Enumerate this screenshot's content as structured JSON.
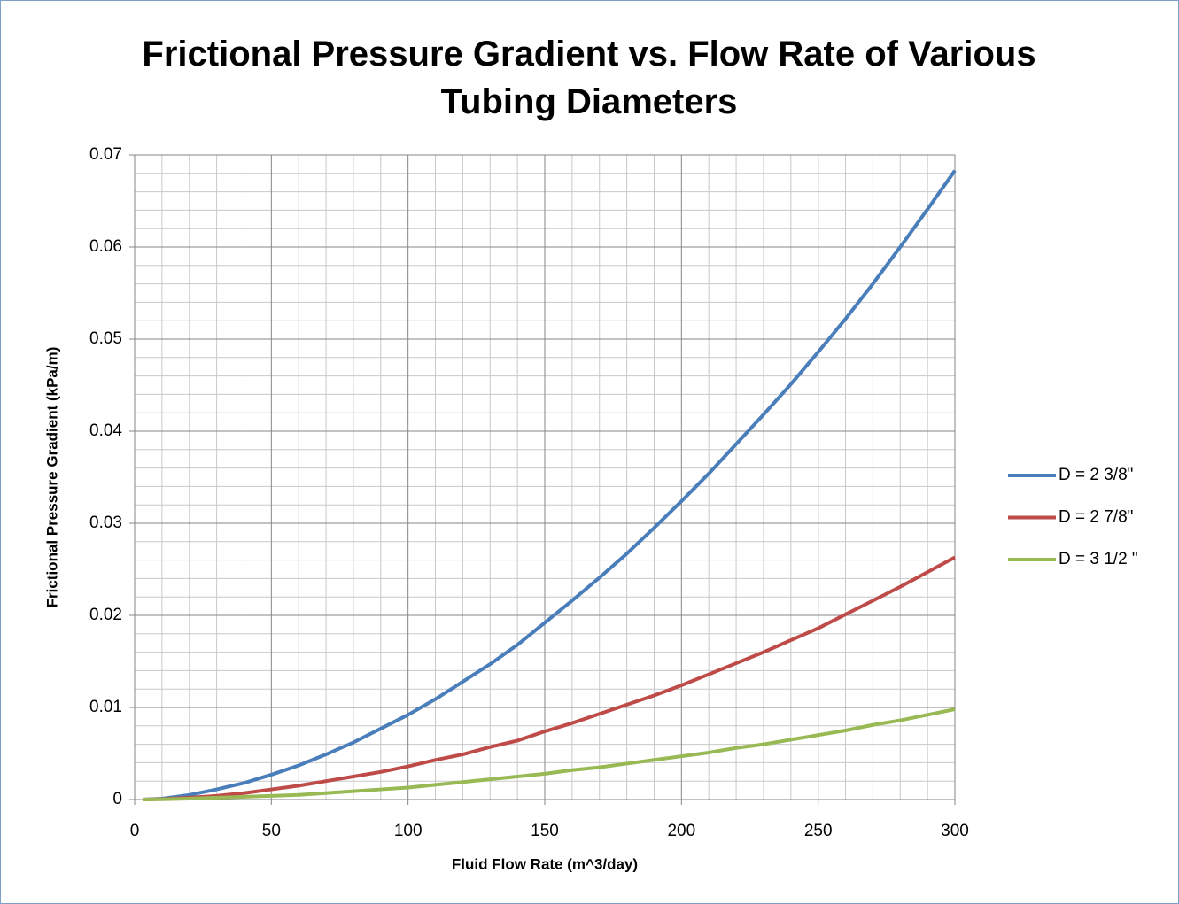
{
  "chart_data": {
    "type": "line",
    "title": "Frictional Pressure Gradient vs. Flow Rate of Various Tubing Diameters",
    "x_label": "Fluid Flow Rate (m^3/day)",
    "y_label": "Frictional Pressure Gradient (kPa/m)",
    "x": [
      3,
      10,
      20,
      30,
      40,
      50,
      60,
      70,
      80,
      90,
      100,
      110,
      120,
      130,
      140,
      150,
      160,
      170,
      180,
      190,
      200,
      210,
      220,
      230,
      240,
      250,
      260,
      270,
      280,
      290,
      300
    ],
    "series": [
      {
        "name": "D = 2 3/8\"",
        "color": "#4a7ebb",
        "values": [
          0,
          0.0001,
          0.0005,
          0.0011,
          0.0018,
          0.0027,
          0.0037,
          0.0049,
          0.0062,
          0.0077,
          0.0092,
          0.0109,
          0.0128,
          0.0147,
          0.0168,
          0.0192,
          0.0216,
          0.0241,
          0.0267,
          0.0295,
          0.0324,
          0.0354,
          0.0386,
          0.0418,
          0.0451,
          0.0486,
          0.0522,
          0.056,
          0.06,
          0.0641,
          0.0683
        ]
      },
      {
        "name": "D = 2 7/8\"",
        "color": "#be4b48",
        "values": [
          0,
          5e-05,
          0.0002,
          0.0004,
          0.0007,
          0.0011,
          0.0015,
          0.002,
          0.0025,
          0.003,
          0.0036,
          0.0043,
          0.0049,
          0.0057,
          0.0064,
          0.0074,
          0.0083,
          0.0093,
          0.0103,
          0.0113,
          0.0124,
          0.0136,
          0.0148,
          0.016,
          0.0173,
          0.0186,
          0.0201,
          0.0216,
          0.0231,
          0.0247,
          0.0263
        ]
      },
      {
        "name": "D = 3 1/2 \"",
        "color": "#98b954",
        "values": [
          0,
          2e-05,
          0.0001,
          0.0002,
          0.0003,
          0.0004,
          0.0005,
          0.0007,
          0.0009,
          0.0011,
          0.0013,
          0.0016,
          0.0019,
          0.0022,
          0.0025,
          0.0028,
          0.0032,
          0.0035,
          0.0039,
          0.0043,
          0.0047,
          0.0051,
          0.0056,
          0.006,
          0.0065,
          0.007,
          0.0075,
          0.0081,
          0.0086,
          0.0092,
          0.0098
        ]
      }
    ],
    "xlim": [
      0,
      300
    ],
    "xticks": [
      0,
      50,
      100,
      150,
      200,
      250,
      300
    ],
    "ylim": [
      0,
      0.07
    ],
    "yticks": [
      0,
      0.01,
      0.02,
      0.03,
      0.04,
      0.05,
      0.06,
      0.07
    ],
    "grid": true,
    "minor_grid": true,
    "legend": "right"
  }
}
